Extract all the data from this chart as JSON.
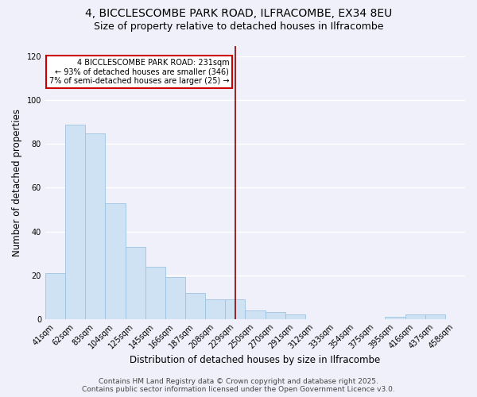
{
  "title": "4, BICCLESCOMBE PARK ROAD, ILFRACOMBE, EX34 8EU",
  "subtitle": "Size of property relative to detached houses in Ilfracombe",
  "xlabel": "Distribution of detached houses by size in Ilfracombe",
  "ylabel": "Number of detached properties",
  "bar_color": "#cfe2f3",
  "bar_edge_color": "#9dc3e0",
  "categories": [
    "41sqm",
    "62sqm",
    "83sqm",
    "104sqm",
    "125sqm",
    "145sqm",
    "166sqm",
    "187sqm",
    "208sqm",
    "229sqm",
    "250sqm",
    "270sqm",
    "291sqm",
    "312sqm",
    "333sqm",
    "354sqm",
    "375sqm",
    "395sqm",
    "416sqm",
    "437sqm",
    "458sqm"
  ],
  "values": [
    21,
    89,
    85,
    53,
    33,
    24,
    19,
    12,
    9,
    9,
    4,
    3,
    2,
    0,
    0,
    0,
    0,
    1,
    2,
    2,
    0
  ],
  "vline_x_index": 9,
  "vline_color": "#8b0000",
  "annotation_lines": [
    "4 BICCLESCOMBE PARK ROAD: 231sqm",
    "← 93% of detached houses are smaller (346)",
    "7% of semi-detached houses are larger (25) →"
  ],
  "ylim": [
    0,
    125
  ],
  "yticks": [
    0,
    20,
    40,
    60,
    80,
    100,
    120
  ],
  "footer1": "Contains HM Land Registry data © Crown copyright and database right 2025.",
  "footer2": "Contains public sector information licensed under the Open Government Licence v3.0.",
  "background_color": "#f0f0fa",
  "grid_color": "#ffffff",
  "title_fontsize": 10,
  "subtitle_fontsize": 9,
  "tick_fontsize": 7,
  "label_fontsize": 8.5,
  "footer_fontsize": 6.5
}
